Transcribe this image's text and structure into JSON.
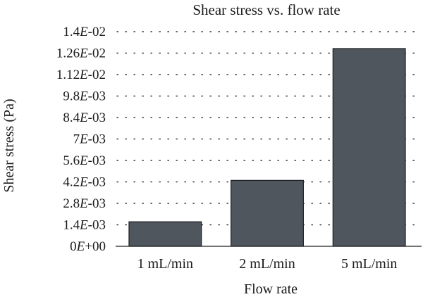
{
  "chart_data": {
    "type": "bar",
    "title": "Shear stress vs. flow rate",
    "xlabel": "Flow rate",
    "ylabel": "Shear stress (Pa)",
    "categories": [
      "1 mL/min",
      "2 mL/min",
      "5 mL/min"
    ],
    "values": [
      0.0016,
      0.0043,
      0.0129
    ],
    "ylim": [
      0,
      0.014
    ],
    "yticks": [
      0,
      0.0014,
      0.0028,
      0.0042,
      0.0056,
      0.007,
      0.0084,
      0.0098,
      0.0112,
      0.0126,
      0.014
    ],
    "ytick_labels": [
      {
        "mantissa": "0",
        "exponent": "+00"
      },
      {
        "mantissa": "1.4",
        "exponent": "-03"
      },
      {
        "mantissa": "2.8",
        "exponent": "-03"
      },
      {
        "mantissa": "4.2",
        "exponent": "-03"
      },
      {
        "mantissa": "5.6",
        "exponent": "-03"
      },
      {
        "mantissa": "7",
        "exponent": "-03"
      },
      {
        "mantissa": "8.4",
        "exponent": "-03"
      },
      {
        "mantissa": "9.8",
        "exponent": "-03"
      },
      {
        "mantissa": "1.12",
        "exponent": "-02"
      },
      {
        "mantissa": "1.26",
        "exponent": "-02"
      },
      {
        "mantissa": "1.4",
        "exponent": "-02"
      }
    ],
    "grid": true,
    "colors": {
      "bar": "#50565e",
      "bar_edge": "#1d1f22",
      "grid": "#333333"
    }
  }
}
